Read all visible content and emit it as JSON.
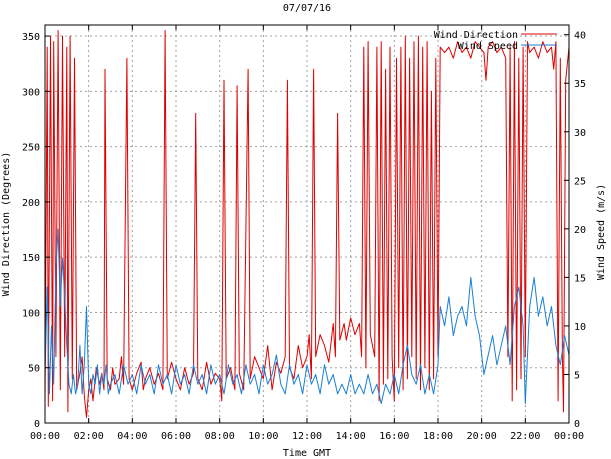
{
  "chart_data": {
    "type": "line",
    "title": "07/07/16",
    "xlabel": "Time GMT",
    "ylabel_left": "Wind Direction (Degrees)",
    "ylabel_right": "Wind Speed (m/s)",
    "x_ticks": [
      "00:00",
      "02:00",
      "04:00",
      "06:00",
      "08:00",
      "10:00",
      "12:00",
      "14:00",
      "16:00",
      "18:00",
      "20:00",
      "22:00",
      "00:00"
    ],
    "x_range_hours": [
      0,
      24
    ],
    "y_left_ticks": [
      0,
      50,
      100,
      150,
      200,
      250,
      300,
      350
    ],
    "y_left_range": [
      0,
      360
    ],
    "y_right_ticks": [
      0,
      5,
      10,
      15,
      20,
      25,
      30,
      35,
      40
    ],
    "y_right_range": [
      0,
      41
    ],
    "grid": true,
    "legend_position": "top-right",
    "series": [
      {
        "name": "Wind Direction",
        "axis": "left",
        "color": "#dd0000",
        "points": [
          [
            0.0,
            20
          ],
          [
            0.1,
            340
          ],
          [
            0.15,
            15
          ],
          [
            0.25,
            350
          ],
          [
            0.35,
            20
          ],
          [
            0.4,
            345
          ],
          [
            0.5,
            60
          ],
          [
            0.6,
            355
          ],
          [
            0.7,
            30
          ],
          [
            0.8,
            350
          ],
          [
            0.9,
            60
          ],
          [
            1.0,
            340
          ],
          [
            1.05,
            10
          ],
          [
            1.15,
            350
          ],
          [
            1.25,
            40
          ],
          [
            1.35,
            330
          ],
          [
            1.45,
            30
          ],
          [
            1.6,
            45
          ],
          [
            1.7,
            60
          ],
          [
            1.8,
            25
          ],
          [
            1.9,
            5
          ],
          [
            2.0,
            30
          ],
          [
            2.1,
            40
          ],
          [
            2.2,
            20
          ],
          [
            2.35,
            50
          ],
          [
            2.5,
            35
          ],
          [
            2.6,
            45
          ],
          [
            2.7,
            30
          ],
          [
            2.75,
            320
          ],
          [
            2.85,
            40
          ],
          [
            3.0,
            30
          ],
          [
            3.1,
            50
          ],
          [
            3.2,
            35
          ],
          [
            3.4,
            40
          ],
          [
            3.5,
            60
          ],
          [
            3.6,
            35
          ],
          [
            3.75,
            330
          ],
          [
            3.85,
            40
          ],
          [
            4.0,
            30
          ],
          [
            4.2,
            45
          ],
          [
            4.4,
            55
          ],
          [
            4.5,
            30
          ],
          [
            4.6,
            40
          ],
          [
            4.8,
            50
          ],
          [
            5.0,
            35
          ],
          [
            5.2,
            45
          ],
          [
            5.4,
            30
          ],
          [
            5.5,
            355
          ],
          [
            5.6,
            40
          ],
          [
            5.8,
            55
          ],
          [
            6.0,
            40
          ],
          [
            6.2,
            30
          ],
          [
            6.4,
            50
          ],
          [
            6.6,
            35
          ],
          [
            6.8,
            45
          ],
          [
            6.9,
            280
          ],
          [
            7.0,
            40
          ],
          [
            7.2,
            30
          ],
          [
            7.4,
            55
          ],
          [
            7.6,
            35
          ],
          [
            7.8,
            45
          ],
          [
            8.0,
            40
          ],
          [
            8.1,
            20
          ],
          [
            8.2,
            310
          ],
          [
            8.3,
            40
          ],
          [
            8.5,
            50
          ],
          [
            8.7,
            30
          ],
          [
            8.8,
            305
          ],
          [
            8.9,
            45
          ],
          [
            9.1,
            30
          ],
          [
            9.3,
            320
          ],
          [
            9.4,
            40
          ],
          [
            9.6,
            60
          ],
          [
            9.8,
            50
          ],
          [
            10.0,
            40
          ],
          [
            10.2,
            70
          ],
          [
            10.4,
            30
          ],
          [
            10.6,
            55
          ],
          [
            10.8,
            45
          ],
          [
            11.0,
            60
          ],
          [
            11.1,
            310
          ],
          [
            11.2,
            50
          ],
          [
            11.4,
            40
          ],
          [
            11.6,
            70
          ],
          [
            11.8,
            50
          ],
          [
            12.0,
            60
          ],
          [
            12.1,
            80
          ],
          [
            12.2,
            40
          ],
          [
            12.3,
            320
          ],
          [
            12.4,
            60
          ],
          [
            12.6,
            80
          ],
          [
            12.8,
            70
          ],
          [
            13.0,
            55
          ],
          [
            13.2,
            90
          ],
          [
            13.3,
            60
          ],
          [
            13.4,
            280
          ],
          [
            13.5,
            75
          ],
          [
            13.7,
            90
          ],
          [
            13.8,
            75
          ],
          [
            14.0,
            95
          ],
          [
            14.2,
            80
          ],
          [
            14.4,
            90
          ],
          [
            14.5,
            60
          ],
          [
            14.6,
            340
          ],
          [
            14.7,
            50
          ],
          [
            14.8,
            345
          ],
          [
            14.9,
            80
          ],
          [
            15.0,
            70
          ],
          [
            15.1,
            60
          ],
          [
            15.2,
            340
          ],
          [
            15.3,
            20
          ],
          [
            15.4,
            345
          ],
          [
            15.5,
            35
          ],
          [
            15.6,
            320
          ],
          [
            15.7,
            40
          ],
          [
            15.8,
            340
          ],
          [
            15.9,
            60
          ],
          [
            16.0,
            20
          ],
          [
            16.1,
            330
          ],
          [
            16.2,
            50
          ],
          [
            16.3,
            340
          ],
          [
            16.4,
            30
          ],
          [
            16.5,
            350
          ],
          [
            16.6,
            40
          ],
          [
            16.7,
            330
          ],
          [
            16.8,
            60
          ],
          [
            16.9,
            345
          ],
          [
            17.0,
            40
          ],
          [
            17.1,
            350
          ],
          [
            17.2,
            30
          ],
          [
            17.3,
            340
          ],
          [
            17.4,
            50
          ],
          [
            17.5,
            345
          ],
          [
            17.6,
            30
          ],
          [
            17.7,
            300
          ],
          [
            17.8,
            40
          ],
          [
            17.9,
            330
          ],
          [
            18.0,
            60
          ],
          [
            18.1,
            340
          ],
          [
            18.3,
            335
          ],
          [
            18.5,
            340
          ],
          [
            18.7,
            330
          ],
          [
            18.9,
            345
          ],
          [
            19.1,
            335
          ],
          [
            19.3,
            340
          ],
          [
            19.5,
            330
          ],
          [
            19.7,
            345
          ],
          [
            19.9,
            340
          ],
          [
            20.1,
            335
          ],
          [
            20.2,
            310
          ],
          [
            20.3,
            340
          ],
          [
            20.5,
            345
          ],
          [
            20.7,
            335
          ],
          [
            20.9,
            340
          ],
          [
            21.1,
            330
          ],
          [
            21.2,
            60
          ],
          [
            21.3,
            340
          ],
          [
            21.4,
            20
          ],
          [
            21.5,
            345
          ],
          [
            21.6,
            30
          ],
          [
            21.7,
            330
          ],
          [
            21.8,
            40
          ],
          [
            21.9,
            340
          ],
          [
            22.0,
            60
          ],
          [
            22.1,
            345
          ],
          [
            22.2,
            335
          ],
          [
            22.4,
            340
          ],
          [
            22.6,
            330
          ],
          [
            22.8,
            345
          ],
          [
            23.0,
            335
          ],
          [
            23.2,
            340
          ],
          [
            23.3,
            320
          ],
          [
            23.4,
            345
          ],
          [
            23.5,
            20
          ],
          [
            23.6,
            330
          ],
          [
            23.7,
            60
          ],
          [
            23.75,
            10
          ],
          [
            23.85,
            310
          ],
          [
            24.0,
            340
          ]
        ]
      },
      {
        "name": "Wind Speed",
        "axis": "right",
        "color": "#1a7fd6",
        "points": [
          [
            0.0,
            5
          ],
          [
            0.1,
            14
          ],
          [
            0.2,
            3
          ],
          [
            0.3,
            10
          ],
          [
            0.4,
            4
          ],
          [
            0.5,
            16
          ],
          [
            0.6,
            20
          ],
          [
            0.7,
            12
          ],
          [
            0.8,
            17
          ],
          [
            0.9,
            13
          ],
          [
            1.0,
            8
          ],
          [
            1.1,
            4
          ],
          [
            1.2,
            3
          ],
          [
            1.3,
            5
          ],
          [
            1.4,
            3
          ],
          [
            1.5,
            4
          ],
          [
            1.6,
            8
          ],
          [
            1.7,
            3
          ],
          [
            1.8,
            6
          ],
          [
            1.9,
            12
          ],
          [
            2.0,
            4
          ],
          [
            2.1,
            3
          ],
          [
            2.2,
            5
          ],
          [
            2.3,
            4
          ],
          [
            2.4,
            6
          ],
          [
            2.5,
            3
          ],
          [
            2.6,
            5
          ],
          [
            2.7,
            4
          ],
          [
            2.8,
            6
          ],
          [
            2.9,
            3
          ],
          [
            3.0,
            4
          ],
          [
            3.2,
            5
          ],
          [
            3.4,
            3
          ],
          [
            3.6,
            6
          ],
          [
            3.8,
            4
          ],
          [
            4.0,
            5
          ],
          [
            4.2,
            3
          ],
          [
            4.4,
            6
          ],
          [
            4.6,
            4
          ],
          [
            4.8,
            5
          ],
          [
            5.0,
            3
          ],
          [
            5.2,
            6
          ],
          [
            5.4,
            4
          ],
          [
            5.6,
            5
          ],
          [
            5.8,
            3
          ],
          [
            6.0,
            6
          ],
          [
            6.2,
            4
          ],
          [
            6.4,
            5
          ],
          [
            6.6,
            3
          ],
          [
            6.8,
            6
          ],
          [
            7.0,
            4
          ],
          [
            7.2,
            5
          ],
          [
            7.4,
            3
          ],
          [
            7.6,
            6
          ],
          [
            7.8,
            4
          ],
          [
            8.0,
            5
          ],
          [
            8.2,
            3
          ],
          [
            8.4,
            6
          ],
          [
            8.6,
            4
          ],
          [
            8.8,
            5
          ],
          [
            9.0,
            3
          ],
          [
            9.2,
            6
          ],
          [
            9.4,
            4
          ],
          [
            9.6,
            5
          ],
          [
            9.8,
            3
          ],
          [
            10.0,
            6
          ],
          [
            10.2,
            4
          ],
          [
            10.4,
            5
          ],
          [
            10.6,
            7
          ],
          [
            10.8,
            4
          ],
          [
            11.0,
            3
          ],
          [
            11.2,
            6
          ],
          [
            11.4,
            4
          ],
          [
            11.6,
            5
          ],
          [
            11.8,
            3
          ],
          [
            12.0,
            6
          ],
          [
            12.2,
            4
          ],
          [
            12.4,
            5
          ],
          [
            12.6,
            3
          ],
          [
            12.8,
            6
          ],
          [
            13.0,
            4
          ],
          [
            13.2,
            5
          ],
          [
            13.4,
            3
          ],
          [
            13.6,
            4
          ],
          [
            13.8,
            3
          ],
          [
            14.0,
            5
          ],
          [
            14.2,
            3
          ],
          [
            14.4,
            4
          ],
          [
            14.6,
            3
          ],
          [
            14.8,
            5
          ],
          [
            15.0,
            3
          ],
          [
            15.2,
            4
          ],
          [
            15.4,
            2
          ],
          [
            15.6,
            4
          ],
          [
            15.8,
            3
          ],
          [
            16.0,
            5
          ],
          [
            16.2,
            3
          ],
          [
            16.4,
            6
          ],
          [
            16.6,
            8
          ],
          [
            16.8,
            5
          ],
          [
            17.0,
            4
          ],
          [
            17.2,
            6
          ],
          [
            17.4,
            3
          ],
          [
            17.6,
            5
          ],
          [
            17.8,
            3
          ],
          [
            18.0,
            6
          ],
          [
            18.1,
            12
          ],
          [
            18.3,
            10
          ],
          [
            18.5,
            13
          ],
          [
            18.7,
            9
          ],
          [
            18.9,
            11
          ],
          [
            19.1,
            12
          ],
          [
            19.3,
            10
          ],
          [
            19.5,
            15
          ],
          [
            19.7,
            11
          ],
          [
            19.9,
            9
          ],
          [
            20.1,
            5
          ],
          [
            20.3,
            7
          ],
          [
            20.5,
            9
          ],
          [
            20.7,
            6
          ],
          [
            20.9,
            8
          ],
          [
            21.1,
            10
          ],
          [
            21.3,
            6
          ],
          [
            21.5,
            12
          ],
          [
            21.7,
            14
          ],
          [
            21.9,
            10
          ],
          [
            22.0,
            2
          ],
          [
            22.2,
            12
          ],
          [
            22.4,
            15
          ],
          [
            22.6,
            11
          ],
          [
            22.8,
            13
          ],
          [
            23.0,
            10
          ],
          [
            23.2,
            12
          ],
          [
            23.4,
            8
          ],
          [
            23.6,
            6
          ],
          [
            23.8,
            9
          ],
          [
            24.0,
            7
          ]
        ]
      }
    ]
  }
}
